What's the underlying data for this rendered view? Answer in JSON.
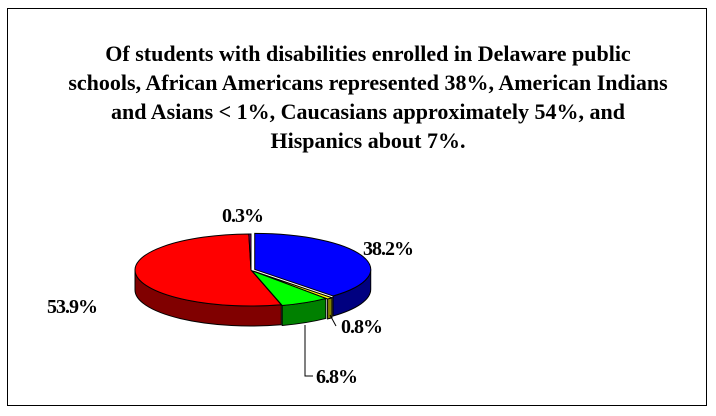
{
  "chart_data": {
    "type": "pie",
    "style": "3d-exploded",
    "title": "Of students with disabilities enrolled in Delaware public schools, African Americans represented 38%, American Indians and Asians < 1%, Caucasians approximately 54%, and Hispanics about 7%.",
    "slices": [
      {
        "value": 38.2,
        "label": "38.2%",
        "color": "#0000ff"
      },
      {
        "value": 0.8,
        "label": "0.8%",
        "color": "#ffff00"
      },
      {
        "value": 6.8,
        "label": "6.8%",
        "color": "#00ff00"
      },
      {
        "value": 53.9,
        "label": "53.9%",
        "color": "#ff0000"
      },
      {
        "value": 0.3,
        "label": "0.3%",
        "color": "#800080"
      }
    ],
    "legend": "none"
  }
}
